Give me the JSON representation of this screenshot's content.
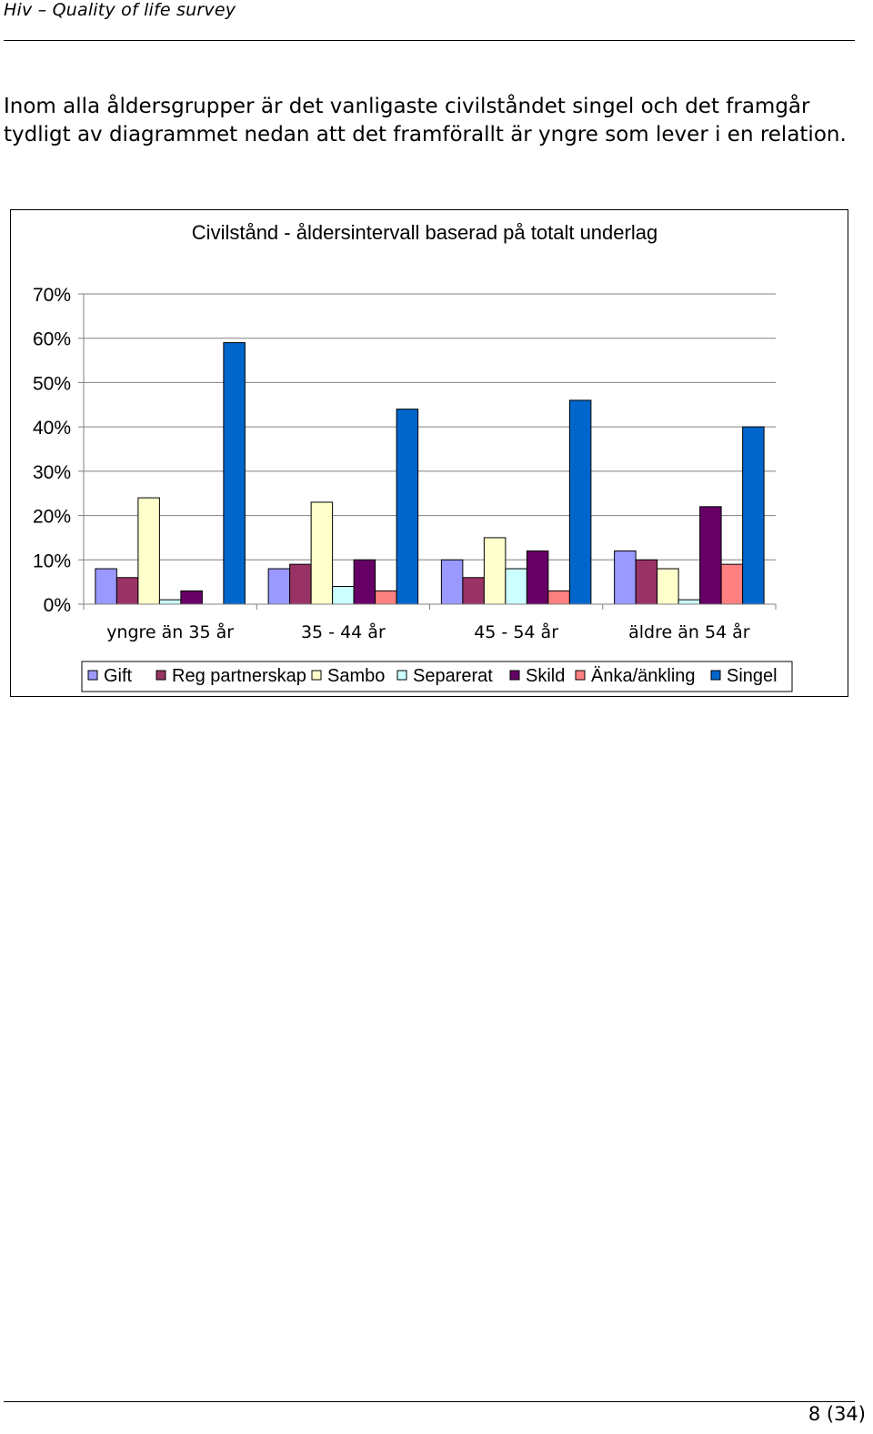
{
  "header": {
    "title": "Hiv – Quality of life survey"
  },
  "body": {
    "paragraph": "Inom alla åldersgrupper är det vanligaste civilståndet singel och det framgår tydligt av diagrammet nedan att det framförallt är yngre som lever i en relation."
  },
  "chart_data": {
    "type": "bar",
    "title": "Civilstånd - åldersintervall baserad på totalt underlag",
    "xlabel": "",
    "ylabel": "",
    "ylim": [
      0,
      0.7
    ],
    "yticks": [
      "0%",
      "10%",
      "20%",
      "30%",
      "40%",
      "50%",
      "60%",
      "70%"
    ],
    "grid": true,
    "legend_position": "bottom",
    "categories": [
      "yngre än 35 år",
      "35 - 44 år",
      "45 - 54 år",
      "äldre än 54 år"
    ],
    "series": [
      {
        "name": "Gift",
        "color": "#9999ff",
        "values": [
          0.08,
          0.08,
          0.1,
          0.12
        ]
      },
      {
        "name": "Reg partnerskap",
        "color": "#993366",
        "values": [
          0.06,
          0.09,
          0.06,
          0.1
        ]
      },
      {
        "name": "Sambo",
        "color": "#ffffcc",
        "values": [
          0.24,
          0.23,
          0.15,
          0.08
        ]
      },
      {
        "name": "Separerat",
        "color": "#ccffff",
        "values": [
          0.01,
          0.04,
          0.08,
          0.01
        ]
      },
      {
        "name": "Skild",
        "color": "#660066",
        "values": [
          0.03,
          0.1,
          0.12,
          0.22
        ]
      },
      {
        "name": "Änka/änkling",
        "color": "#ff8080",
        "values": [
          0.0,
          0.03,
          0.03,
          0.09
        ]
      },
      {
        "name": "Singel",
        "color": "#0066cc",
        "values": [
          0.59,
          0.44,
          0.46,
          0.4
        ]
      }
    ]
  },
  "footer": {
    "page": "8 (34)"
  }
}
